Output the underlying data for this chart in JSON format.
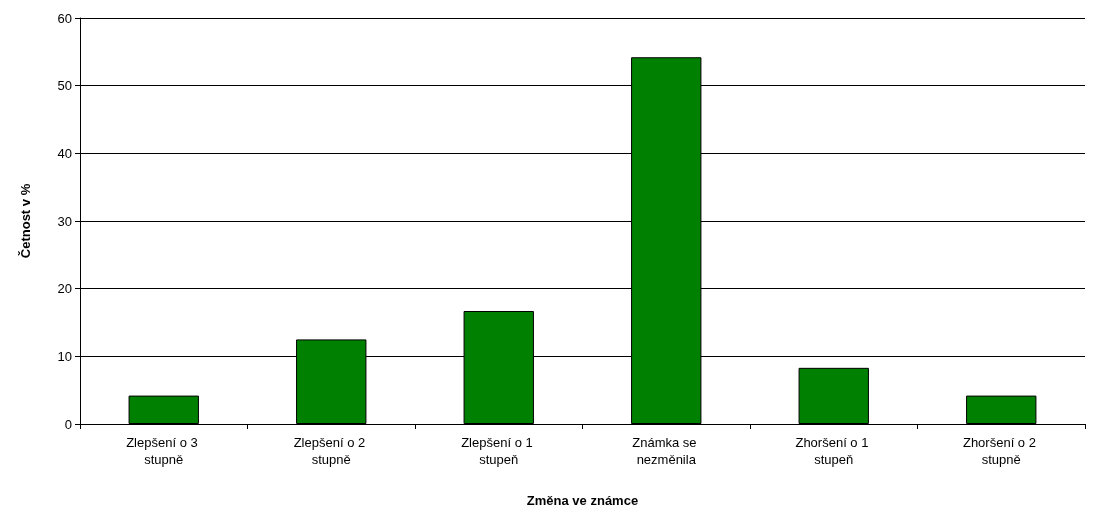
{
  "chart_data": {
    "type": "bar",
    "xlabel": "Změna ve známce",
    "ylabel": "Četnost v %",
    "categories": [
      "Zlepšení o 3 stupně",
      "Zlepšení o 2 stupně",
      "Zlepšení o 1 stupeň",
      "Známka se nezměnila",
      "Zhoršení o 1 stupeň",
      "Zhoršení o 2 stupně"
    ],
    "values": [
      4.2,
      12.5,
      16.7,
      54.2,
      8.3,
      4.2
    ],
    "color": "#008000",
    "ylim": [
      0,
      60
    ],
    "yticks": [
      0,
      10,
      20,
      30,
      40,
      50,
      60
    ],
    "grid": "y"
  }
}
